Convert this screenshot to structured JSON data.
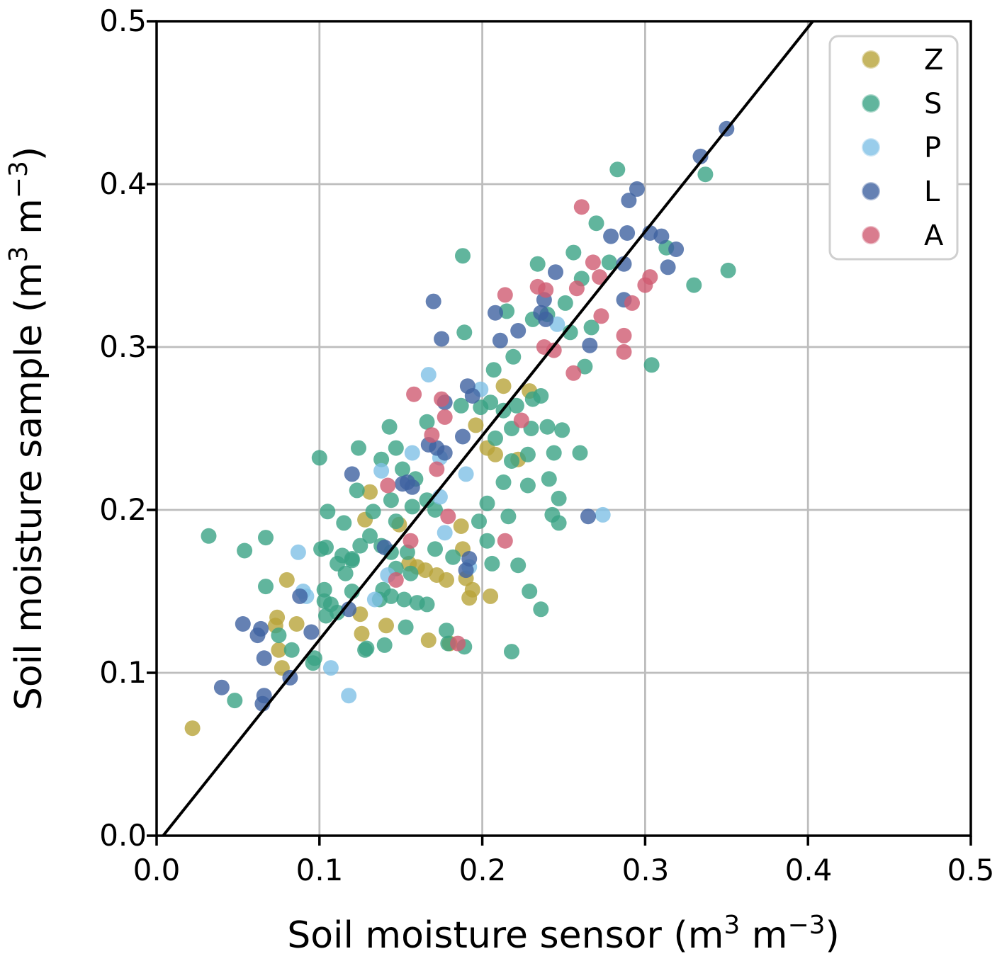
{
  "chart_data": {
    "type": "scatter",
    "title": "",
    "xlabel": "Soil moisture sensor (m3 m-3)",
    "ylabel": "Soil moisture sample (m3 m-3)",
    "xlim": [
      0.0,
      0.5
    ],
    "ylim": [
      0.0,
      0.5
    ],
    "grid": true,
    "legend_position": "upper right",
    "xticks": [
      0.0,
      0.1,
      0.2,
      0.3,
      0.4,
      0.5
    ],
    "yticks": [
      0.0,
      0.1,
      0.2,
      0.3,
      0.4,
      0.5
    ],
    "xtick_labels": [
      "0.0",
      "0.1",
      "0.2",
      "0.3",
      "0.4",
      "0.5"
    ],
    "ytick_labels": [
      "0.0",
      "0.1",
      "0.2",
      "0.3",
      "0.4",
      "0.5"
    ],
    "fit_line": {
      "x1": 0.004,
      "y1": 0.0,
      "x2": 0.403,
      "y2": 0.5,
      "color": "#000000"
    },
    "marker_alpha": 0.8,
    "series": [
      {
        "name": "Z",
        "color": "#b8a43a",
        "points": [
          [
            0.213,
            0.276
          ],
          [
            0.229,
            0.273
          ],
          [
            0.196,
            0.252
          ],
          [
            0.203,
            0.238
          ],
          [
            0.208,
            0.234
          ],
          [
            0.222,
            0.231
          ],
          [
            0.131,
            0.211
          ],
          [
            0.128,
            0.194
          ],
          [
            0.149,
            0.191
          ],
          [
            0.187,
            0.19
          ],
          [
            0.188,
            0.176
          ],
          [
            0.155,
            0.167
          ],
          [
            0.16,
            0.165
          ],
          [
            0.165,
            0.163
          ],
          [
            0.172,
            0.16
          ],
          [
            0.178,
            0.157
          ],
          [
            0.19,
            0.158
          ],
          [
            0.194,
            0.151
          ],
          [
            0.192,
            0.146
          ],
          [
            0.205,
            0.147
          ],
          [
            0.08,
            0.157
          ],
          [
            0.074,
            0.134
          ],
          [
            0.073,
            0.129
          ],
          [
            0.086,
            0.13
          ],
          [
            0.125,
            0.136
          ],
          [
            0.126,
            0.124
          ],
          [
            0.141,
            0.129
          ],
          [
            0.167,
            0.12
          ],
          [
            0.18,
            0.118
          ],
          [
            0.075,
            0.114
          ],
          [
            0.077,
            0.103
          ],
          [
            0.022,
            0.066
          ]
        ]
      },
      {
        "name": "S",
        "color": "#3aa385",
        "points": [
          [
            0.283,
            0.409
          ],
          [
            0.337,
            0.406
          ],
          [
            0.188,
            0.356
          ],
          [
            0.27,
            0.376
          ],
          [
            0.234,
            0.351
          ],
          [
            0.256,
            0.358
          ],
          [
            0.278,
            0.352
          ],
          [
            0.261,
            0.342
          ],
          [
            0.251,
            0.327
          ],
          [
            0.254,
            0.309
          ],
          [
            0.24,
            0.32
          ],
          [
            0.231,
            0.317
          ],
          [
            0.215,
            0.322
          ],
          [
            0.189,
            0.309
          ],
          [
            0.219,
            0.294
          ],
          [
            0.207,
            0.286
          ],
          [
            0.267,
            0.312
          ],
          [
            0.263,
            0.288
          ],
          [
            0.313,
            0.361
          ],
          [
            0.351,
            0.347
          ],
          [
            0.33,
            0.338
          ],
          [
            0.304,
            0.289
          ],
          [
            0.187,
            0.264
          ],
          [
            0.199,
            0.263
          ],
          [
            0.205,
            0.266
          ],
          [
            0.213,
            0.261
          ],
          [
            0.221,
            0.264
          ],
          [
            0.231,
            0.268
          ],
          [
            0.236,
            0.27
          ],
          [
            0.24,
            0.251
          ],
          [
            0.23,
            0.25
          ],
          [
            0.218,
            0.25
          ],
          [
            0.208,
            0.244
          ],
          [
            0.228,
            0.234
          ],
          [
            0.218,
            0.23
          ],
          [
            0.244,
            0.235
          ],
          [
            0.241,
            0.219
          ],
          [
            0.228,
            0.215
          ],
          [
            0.213,
            0.217
          ],
          [
            0.243,
            0.197
          ],
          [
            0.216,
            0.196
          ],
          [
            0.203,
            0.204
          ],
          [
            0.198,
            0.193
          ],
          [
            0.229,
            0.15
          ],
          [
            0.143,
            0.251
          ],
          [
            0.147,
            0.238
          ],
          [
            0.138,
            0.231
          ],
          [
            0.123,
            0.212
          ],
          [
            0.1,
            0.232
          ],
          [
            0.105,
            0.199
          ],
          [
            0.115,
            0.192
          ],
          [
            0.12,
            0.17
          ],
          [
            0.116,
            0.161
          ],
          [
            0.104,
            0.177
          ],
          [
            0.107,
            0.142
          ],
          [
            0.104,
            0.135
          ],
          [
            0.139,
            0.151
          ],
          [
            0.152,
            0.145
          ],
          [
            0.16,
            0.143
          ],
          [
            0.166,
            0.142
          ],
          [
            0.14,
            0.117
          ],
          [
            0.153,
            0.128
          ],
          [
            0.128,
            0.114
          ],
          [
            0.178,
            0.126
          ],
          [
            0.203,
            0.181
          ],
          [
            0.147,
            0.193
          ],
          [
            0.157,
            0.202
          ],
          [
            0.166,
            0.206
          ],
          [
            0.171,
            0.2
          ],
          [
            0.159,
            0.219
          ],
          [
            0.151,
            0.225
          ],
          [
            0.206,
            0.167
          ],
          [
            0.236,
            0.139
          ],
          [
            0.249,
            0.249
          ],
          [
            0.26,
            0.235
          ],
          [
            0.247,
            0.207
          ],
          [
            0.247,
            0.192
          ],
          [
            0.054,
            0.175
          ],
          [
            0.114,
            0.172
          ],
          [
            0.12,
            0.169
          ],
          [
            0.111,
            0.167
          ],
          [
            0.144,
            0.174
          ],
          [
            0.154,
            0.174
          ],
          [
            0.171,
            0.176
          ],
          [
            0.147,
            0.164
          ],
          [
            0.156,
            0.161
          ],
          [
            0.067,
            0.153
          ],
          [
            0.103,
            0.151
          ],
          [
            0.103,
            0.144
          ],
          [
            0.111,
            0.137
          ],
          [
            0.075,
            0.123
          ],
          [
            0.083,
            0.114
          ],
          [
            0.097,
            0.109
          ],
          [
            0.096,
            0.106
          ],
          [
            0.048,
            0.083
          ],
          [
            0.12,
            0.15
          ],
          [
            0.144,
            0.147
          ],
          [
            0.137,
            0.145
          ],
          [
            0.179,
            0.118
          ],
          [
            0.129,
            0.115
          ],
          [
            0.182,
            0.171
          ],
          [
            0.222,
            0.166
          ],
          [
            0.189,
            0.116
          ],
          [
            0.218,
            0.113
          ],
          [
            0.144,
            0.206
          ],
          [
            0.133,
            0.199
          ],
          [
            0.032,
            0.184
          ],
          [
            0.067,
            0.183
          ],
          [
            0.101,
            0.176
          ],
          [
            0.131,
            0.184
          ],
          [
            0.125,
            0.178
          ],
          [
            0.138,
            0.178
          ],
          [
            0.166,
            0.254
          ],
          [
            0.124,
            0.238
          ]
        ]
      },
      {
        "name": "P",
        "color": "#7fc0e6",
        "points": [
          [
            0.167,
            0.283
          ],
          [
            0.199,
            0.274
          ],
          [
            0.157,
            0.235
          ],
          [
            0.138,
            0.224
          ],
          [
            0.174,
            0.232
          ],
          [
            0.19,
            0.222
          ],
          [
            0.174,
            0.208
          ],
          [
            0.177,
            0.186
          ],
          [
            0.192,
            0.165
          ],
          [
            0.087,
            0.174
          ],
          [
            0.09,
            0.15
          ],
          [
            0.092,
            0.147
          ],
          [
            0.134,
            0.145
          ],
          [
            0.142,
            0.16
          ],
          [
            0.274,
            0.197
          ],
          [
            0.246,
            0.314
          ],
          [
            0.107,
            0.103
          ],
          [
            0.118,
            0.086
          ]
        ]
      },
      {
        "name": "L",
        "color": "#3f62a0",
        "points": [
          [
            0.35,
            0.434
          ],
          [
            0.334,
            0.417
          ],
          [
            0.295,
            0.397
          ],
          [
            0.29,
            0.39
          ],
          [
            0.289,
            0.37
          ],
          [
            0.303,
            0.37
          ],
          [
            0.31,
            0.368
          ],
          [
            0.319,
            0.36
          ],
          [
            0.314,
            0.349
          ],
          [
            0.287,
            0.351
          ],
          [
            0.279,
            0.368
          ],
          [
            0.245,
            0.346
          ],
          [
            0.17,
            0.328
          ],
          [
            0.208,
            0.321
          ],
          [
            0.238,
            0.329
          ],
          [
            0.236,
            0.321
          ],
          [
            0.239,
            0.317
          ],
          [
            0.175,
            0.305
          ],
          [
            0.211,
            0.304
          ],
          [
            0.222,
            0.31
          ],
          [
            0.287,
            0.329
          ],
          [
            0.266,
            0.301
          ],
          [
            0.191,
            0.276
          ],
          [
            0.194,
            0.27
          ],
          [
            0.167,
            0.24
          ],
          [
            0.172,
            0.238
          ],
          [
            0.177,
            0.235
          ],
          [
            0.12,
            0.222
          ],
          [
            0.151,
            0.216
          ],
          [
            0.157,
            0.214
          ],
          [
            0.188,
            0.245
          ],
          [
            0.14,
            0.177
          ],
          [
            0.192,
            0.17
          ],
          [
            0.088,
            0.147
          ],
          [
            0.095,
            0.125
          ],
          [
            0.118,
            0.139
          ],
          [
            0.064,
            0.127
          ],
          [
            0.062,
            0.123
          ],
          [
            0.066,
            0.109
          ],
          [
            0.082,
            0.097
          ],
          [
            0.066,
            0.086
          ],
          [
            0.065,
            0.081
          ],
          [
            0.04,
            0.091
          ],
          [
            0.265,
            0.196
          ],
          [
            0.154,
            0.217
          ],
          [
            0.177,
            0.266
          ],
          [
            0.053,
            0.13
          ],
          [
            0.19,
            0.163
          ]
        ]
      },
      {
        "name": "A",
        "color": "#d05b72",
        "points": [
          [
            0.261,
            0.386
          ],
          [
            0.268,
            0.352
          ],
          [
            0.272,
            0.343
          ],
          [
            0.214,
            0.332
          ],
          [
            0.234,
            0.337
          ],
          [
            0.239,
            0.335
          ],
          [
            0.258,
            0.336
          ],
          [
            0.273,
            0.319
          ],
          [
            0.238,
            0.3
          ],
          [
            0.244,
            0.298
          ],
          [
            0.287,
            0.307
          ],
          [
            0.287,
            0.297
          ],
          [
            0.256,
            0.284
          ],
          [
            0.303,
            0.343
          ],
          [
            0.3,
            0.338
          ],
          [
            0.292,
            0.327
          ],
          [
            0.158,
            0.271
          ],
          [
            0.175,
            0.268
          ],
          [
            0.177,
            0.257
          ],
          [
            0.169,
            0.246
          ],
          [
            0.172,
            0.225
          ],
          [
            0.142,
            0.215
          ],
          [
            0.224,
            0.255
          ],
          [
            0.179,
            0.196
          ],
          [
            0.156,
            0.181
          ],
          [
            0.214,
            0.181
          ],
          [
            0.147,
            0.157
          ],
          [
            0.185,
            0.118
          ]
        ]
      }
    ]
  },
  "labels": {
    "xlabel": {
      "pre": "Soil moisture sensor (m",
      "sup1": "3",
      "mid": " m",
      "sup2": "−3",
      "post": ")"
    },
    "ylabel": {
      "pre": "Soil moisture sample (m",
      "sup1": "3",
      "mid": " m",
      "sup2": "−3",
      "post": ")"
    }
  },
  "legend": {
    "entries": [
      "Z",
      "S",
      "P",
      "L",
      "A"
    ]
  }
}
